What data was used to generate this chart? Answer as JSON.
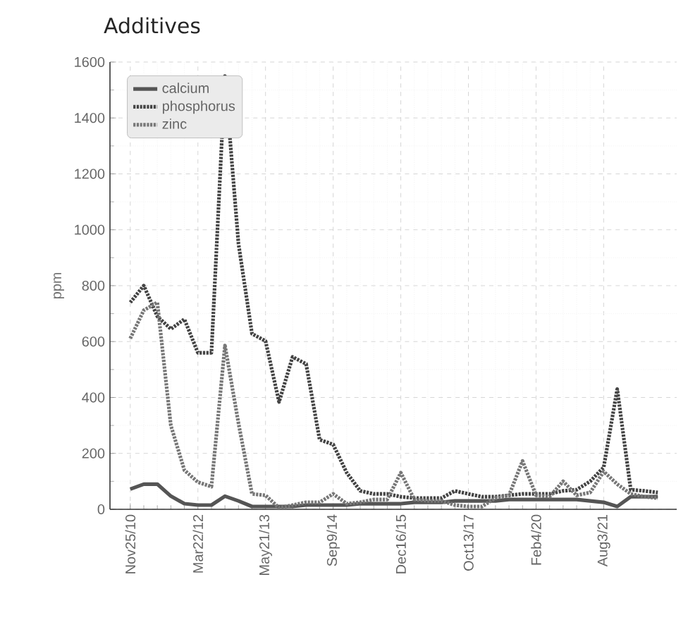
{
  "chart_data": {
    "type": "line",
    "title": "Additives",
    "ylabel": "ppm",
    "categories": [
      "Nov25/10",
      null,
      null,
      null,
      null,
      "Mar22/12",
      null,
      null,
      null,
      null,
      "May21/13",
      null,
      null,
      null,
      null,
      "Sep9/14",
      null,
      null,
      null,
      null,
      "Dec16/15",
      null,
      null,
      null,
      null,
      "Oct13/17",
      null,
      null,
      null,
      null,
      "Feb4/20",
      null,
      null,
      null,
      null,
      "Aug3/21",
      null,
      null,
      null,
      null
    ],
    "series": [
      {
        "name": "calcium",
        "color": "#555555",
        "line_style": "solid",
        "values": [
          72,
          90,
          90,
          47,
          20,
          15,
          15,
          47,
          30,
          10,
          10,
          10,
          10,
          15,
          15,
          15,
          15,
          20,
          20,
          20,
          20,
          25,
          25,
          25,
          30,
          30,
          30,
          30,
          35,
          35,
          35,
          35,
          35,
          35,
          30,
          25,
          10,
          45,
          45,
          45
        ]
      },
      {
        "name": "phosphorus",
        "color": "#444444",
        "line_style": "dotted",
        "values": [
          740,
          800,
          690,
          645,
          680,
          560,
          560,
          1550,
          950,
          628,
          602,
          384,
          545,
          520,
          249,
          232,
          131,
          66,
          55,
          55,
          45,
          40,
          40,
          40,
          66,
          55,
          45,
          45,
          50,
          55,
          55,
          55,
          66,
          70,
          100,
          150,
          430,
          70,
          66,
          60
        ]
      },
      {
        "name": "zinc",
        "color": "#777777",
        "line_style": "dotted",
        "values": [
          611,
          712,
          740,
          300,
          140,
          97,
          81,
          586,
          308,
          55,
          50,
          5,
          15,
          25,
          25,
          55,
          20,
          25,
          35,
          35,
          131,
          35,
          30,
          30,
          15,
          10,
          10,
          40,
          50,
          173,
          50,
          45,
          100,
          50,
          60,
          135,
          90,
          55,
          45,
          40
        ]
      }
    ],
    "ylim": [
      0,
      1600
    ],
    "yticks": [
      0,
      200,
      400,
      600,
      800,
      1000,
      1200,
      1400,
      1600
    ],
    "grid": true,
    "legend": "top left",
    "marker": "none"
  }
}
